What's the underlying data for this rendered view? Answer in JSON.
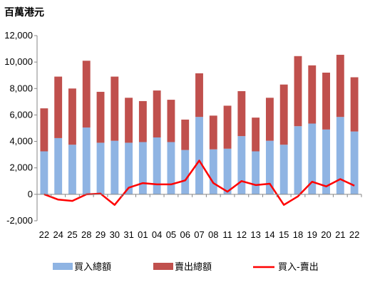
{
  "chart_data": {
    "type": "bar",
    "stacked": true,
    "unit_label": "百萬港元",
    "categories": [
      "22",
      "24",
      "25",
      "28",
      "29",
      "30",
      "31",
      "01",
      "04",
      "05",
      "06",
      "07",
      "08",
      "11",
      "12",
      "13",
      "14",
      "15",
      "18",
      "19",
      "20",
      "21",
      "22"
    ],
    "series": [
      {
        "name": "買入總額",
        "type": "bar",
        "color": "#8fb4e3",
        "values": [
          3250,
          4250,
          3750,
          5050,
          3900,
          4050,
          3900,
          3950,
          4300,
          3950,
          3350,
          5850,
          3400,
          3450,
          4400,
          3250,
          4050,
          3750,
          5150,
          5350,
          4900,
          5850,
          4750
        ]
      },
      {
        "name": "賣出總額",
        "type": "bar",
        "color": "#c0504d",
        "values": [
          3250,
          4650,
          4250,
          5050,
          3850,
          4850,
          3400,
          3100,
          3550,
          3200,
          2300,
          3300,
          2550,
          3250,
          3400,
          2550,
          3250,
          4550,
          5300,
          4400,
          4300,
          4700,
          4100
        ]
      },
      {
        "name": "買入-賣出",
        "type": "line",
        "color": "#ff0000",
        "values": [
          0,
          -400,
          -500,
          0,
          50,
          -800,
          500,
          850,
          750,
          750,
          1050,
          2550,
          850,
          200,
          1000,
          700,
          800,
          -800,
          -150,
          950,
          600,
          1150,
          650
        ]
      }
    ],
    "ylim": [
      -2000,
      12000
    ],
    "yticks": [
      "-2,000",
      "0",
      "2,000",
      "4,000",
      "6,000",
      "8,000",
      "10,000",
      "12,000"
    ],
    "legend_position": "bottom",
    "grid": false
  }
}
